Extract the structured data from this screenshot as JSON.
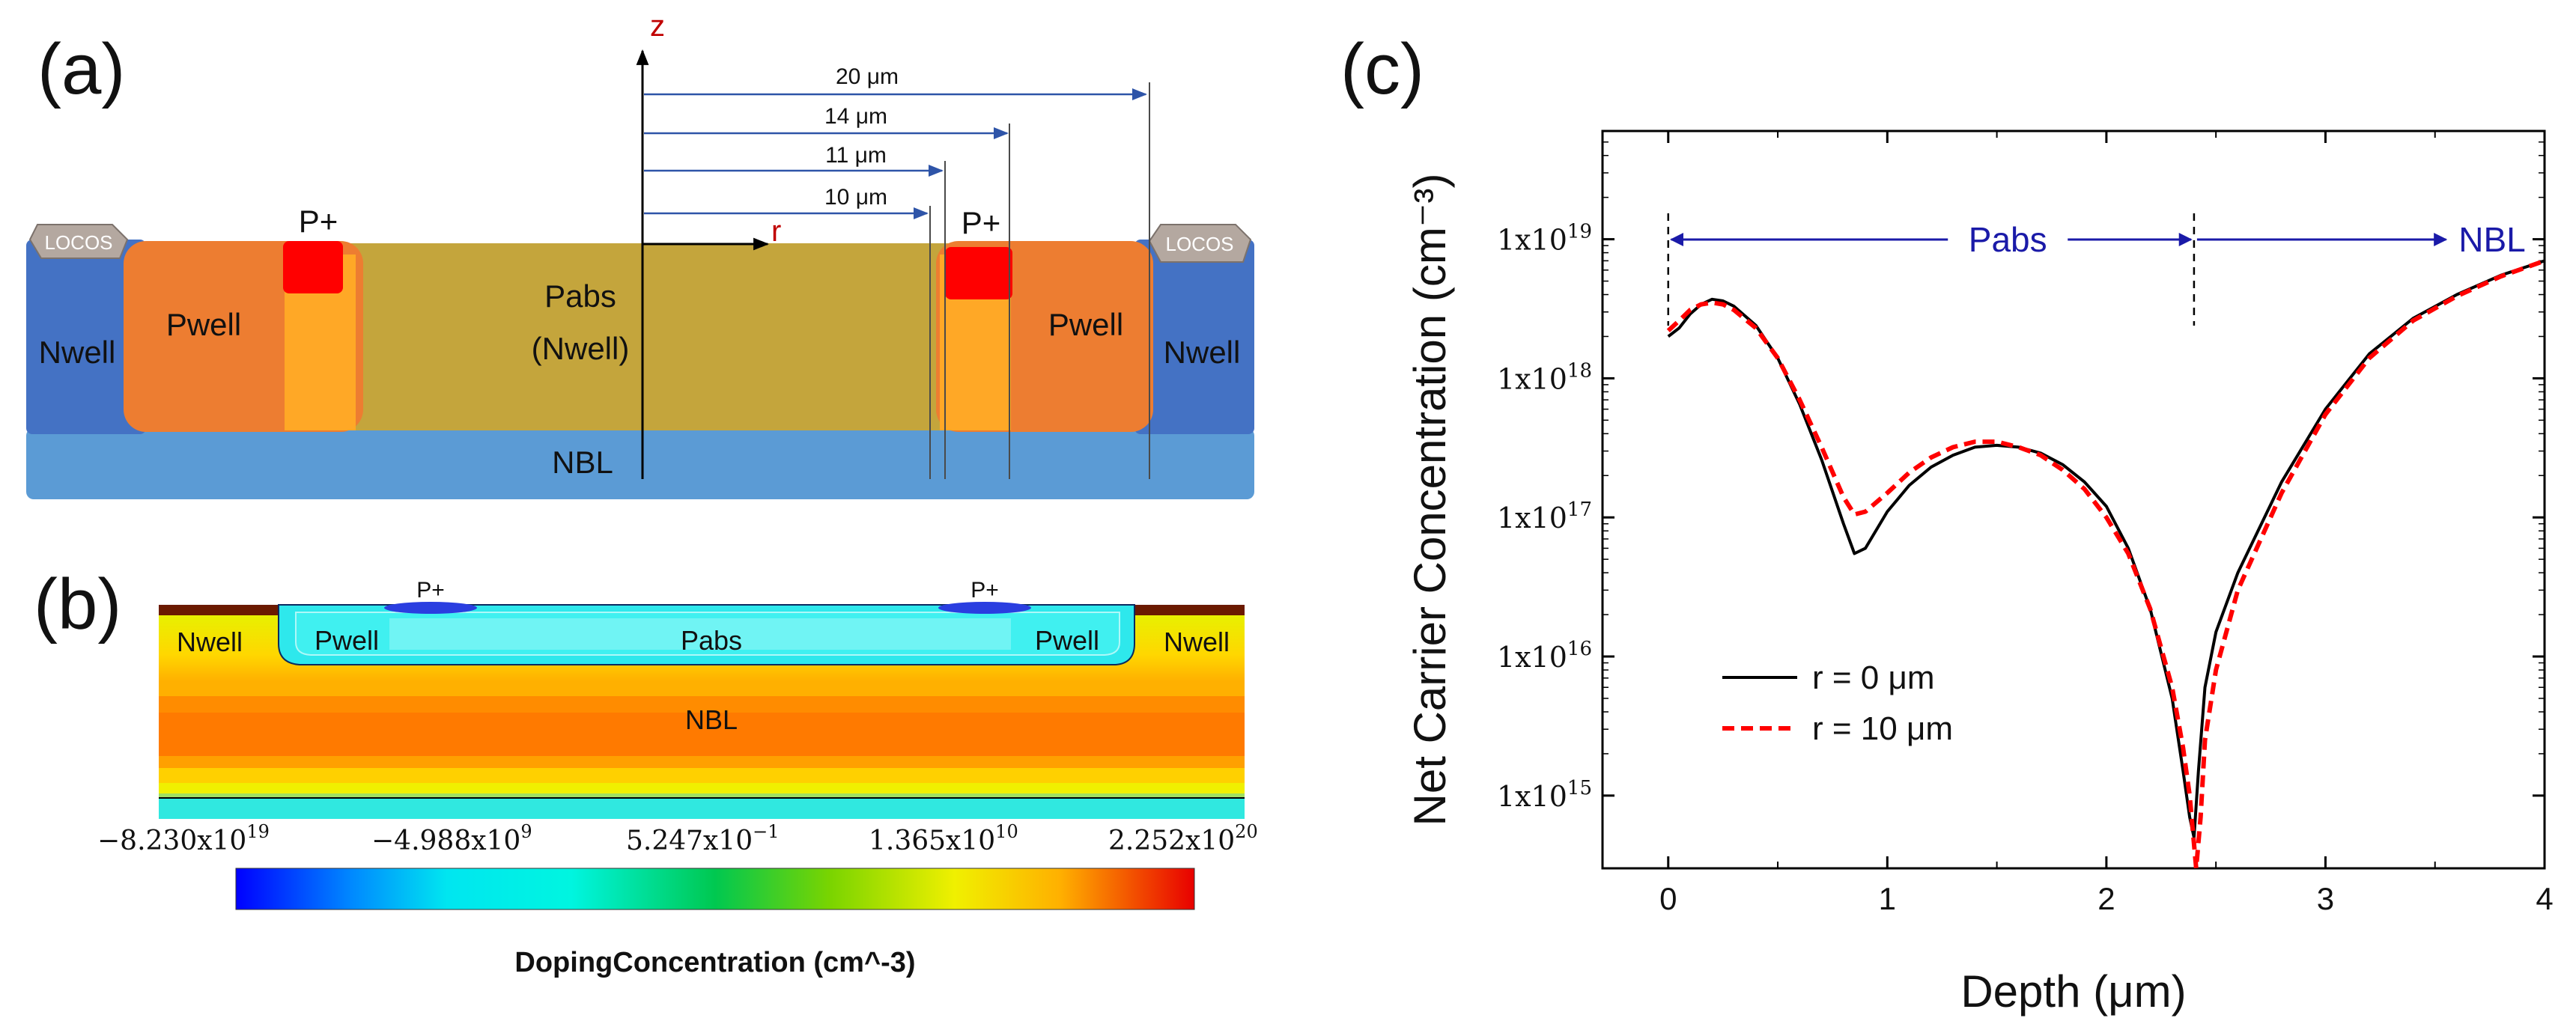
{
  "figure": {
    "panel_a": {
      "label": "(a)",
      "axis_z": "z",
      "axis_r": "r",
      "dims": [
        "20 μm",
        "14 μm",
        "11 μm",
        "10 μm"
      ],
      "locos": "LOCOS",
      "nwell": "Nwell",
      "pwell": "Pwell",
      "pplus": "P+",
      "pabs": "Pabs",
      "pabs_sub": "(Nwell)",
      "nbl": "NBL",
      "colors": {
        "nwell": "#4472c4",
        "nbl": "#5b9bd5",
        "pwell": "#ed7d31",
        "pabs": "#c4a53c",
        "pplus": "#ff0000",
        "pwell_inner": "#ffa826"
      }
    },
    "panel_b": {
      "label": "(b)",
      "pplus": "P+",
      "nwell": "Nwell",
      "pwell": "Pwell",
      "pabs": "Pabs",
      "nbl": "NBL",
      "colorbar_ticks": [
        "−8.230x10",
        "−4.988x10",
        "5.247x10",
        "1.365x10",
        "2.252x10"
      ],
      "colorbar_exps": [
        "19",
        "9",
        "−1",
        "10",
        "20"
      ],
      "colorbar_title": "DopingConcentration (cm^-3)"
    },
    "panel_c": {
      "label": "(c)",
      "region_pabs": "Pabs",
      "region_nbl": "NBL",
      "legend": [
        "r = 0 μm",
        "r = 10 μm"
      ]
    }
  },
  "chart_data": {
    "type": "line",
    "title": "",
    "xlabel": "Depth (μm)",
    "ylabel": "Net Carrier Concentration (cm⁻³)",
    "yscale": "log",
    "xlim": [
      -0.3,
      4
    ],
    "ylim": [
      300000000000000.0,
      6e+19
    ],
    "xticks": [
      0,
      1,
      2,
      3,
      4
    ],
    "xtick_labels": [
      "0",
      "1",
      "2",
      "3",
      "4"
    ],
    "yticks": [
      1000000000000000.0,
      1e+16,
      1e+17,
      1e+18,
      1e+19
    ],
    "ytick_base": "1x10",
    "ytick_exps": [
      "15",
      "16",
      "17",
      "18",
      "19"
    ],
    "boundaries": [
      0,
      2.4
    ],
    "series": [
      {
        "name": "r = 0 μm",
        "color": "#000000",
        "dash": "solid",
        "x": [
          0,
          0.05,
          0.1,
          0.15,
          0.2,
          0.25,
          0.3,
          0.4,
          0.5,
          0.6,
          0.7,
          0.8,
          0.85,
          0.9,
          1.0,
          1.1,
          1.2,
          1.3,
          1.4,
          1.5,
          1.6,
          1.7,
          1.8,
          1.9,
          2.0,
          2.1,
          2.2,
          2.3,
          2.35,
          2.38,
          2.4,
          2.42,
          2.45,
          2.5,
          2.6,
          2.8,
          3.0,
          3.2,
          3.4,
          3.6,
          3.8,
          4.0
        ],
        "y": [
          2e+18,
          2.3e+18,
          2.9e+18,
          3.4e+18,
          3.7e+18,
          3.6e+18,
          3.3e+18,
          2.4e+18,
          1.4e+18,
          6.5e+17,
          2.6e+17,
          9e+16,
          5.5e+16,
          6e+16,
          1.1e+17,
          1.7e+17,
          2.3e+17,
          2.8e+17,
          3.2e+17,
          3.3e+17,
          3.2e+17,
          2.9e+17,
          2.4e+17,
          1.8e+17,
          1.2e+17,
          6e+16,
          2.2e+16,
          5000000000000000.0,
          1500000000000000.0,
          700000000000000.0,
          500000000000000.0,
          1500000000000000.0,
          6000000000000000.0,
          1.5e+16,
          4e+16,
          1.8e+17,
          6e+17,
          1.5e+18,
          2.7e+18,
          4e+18,
          5.5e+18,
          7e+18
        ]
      },
      {
        "name": "r = 10 μm",
        "color": "#ff0000",
        "dash": "dashed",
        "x": [
          0,
          0.05,
          0.1,
          0.15,
          0.2,
          0.25,
          0.3,
          0.4,
          0.5,
          0.6,
          0.7,
          0.8,
          0.85,
          0.9,
          1.0,
          1.1,
          1.2,
          1.3,
          1.4,
          1.5,
          1.6,
          1.7,
          1.8,
          1.9,
          2.0,
          2.1,
          2.2,
          2.3,
          2.35,
          2.38,
          2.41,
          2.43,
          2.45,
          2.5,
          2.6,
          2.8,
          3.0,
          3.2,
          3.4,
          3.6,
          3.8,
          4.0
        ],
        "y": [
          2.2e+18,
          2.6e+18,
          3.1e+18,
          3.4e+18,
          3.5e+18,
          3.4e+18,
          3.1e+18,
          2.3e+18,
          1.4e+18,
          7e+17,
          3.2e+17,
          1.4e+17,
          1.05e+17,
          1.1e+17,
          1.5e+17,
          2.1e+17,
          2.7e+17,
          3.2e+17,
          3.5e+17,
          3.5e+17,
          3.2e+17,
          2.8e+17,
          2.2e+17,
          1.6e+17,
          1e+17,
          5.5e+16,
          2.2e+16,
          6000000000000000.0,
          2200000000000000.0,
          1000000000000000.0,
          300000000000000.0,
          700000000000000.0,
          2500000000000000.0,
          8000000000000000.0,
          3e+16,
          1.5e+17,
          5.5e+17,
          1.4e+18,
          2.6e+18,
          3.9e+18,
          5.4e+18,
          7e+18
        ]
      }
    ]
  }
}
